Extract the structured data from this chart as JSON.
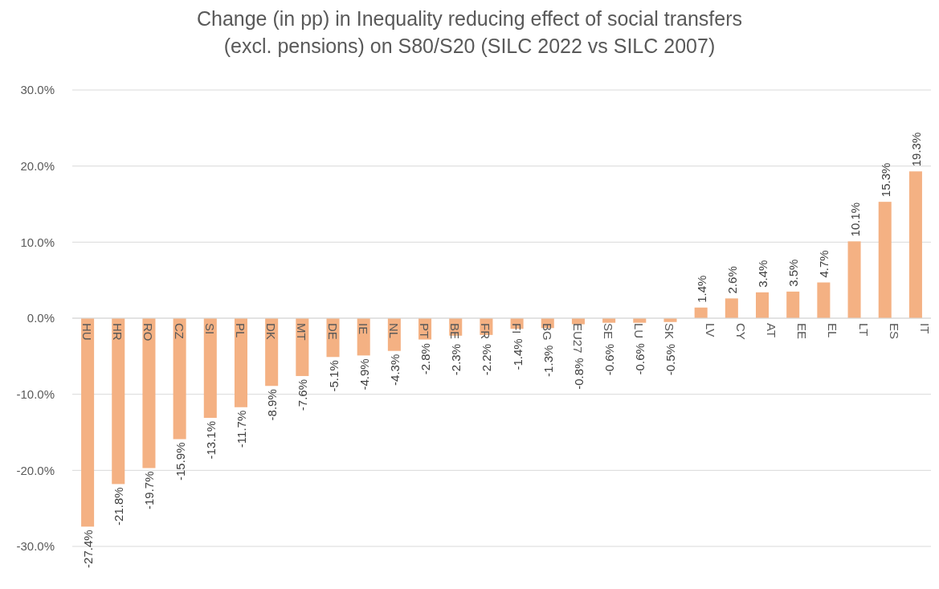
{
  "chart_data": {
    "type": "bar",
    "title": "Change (in pp) in Inequality reducing effect of social transfers (excl. pensions) on S80/S20 (SILC 2022 vs SILC 2007)",
    "categories": [
      "HU",
      "HR",
      "RO",
      "CZ",
      "SI",
      "PL",
      "DK",
      "MT",
      "DE",
      "IE",
      "NL",
      "PT",
      "BE",
      "FR",
      "FI",
      "BG",
      "EU27",
      "SE",
      "LU",
      "SK",
      "LV",
      "CY",
      "AT",
      "EE",
      "EL",
      "LT",
      "ES",
      "IT"
    ],
    "values": [
      -27.4,
      -21.8,
      -19.7,
      -15.9,
      -13.1,
      -11.7,
      -8.9,
      -7.6,
      -5.1,
      -4.9,
      -4.3,
      -2.8,
      -2.3,
      -2.2,
      -1.4,
      -1.3,
      -0.8,
      -0.6,
      -0.6,
      -0.5,
      1.4,
      2.6,
      3.4,
      3.5,
      4.7,
      10.1,
      15.3,
      19.3
    ],
    "value_labels": [
      "-27.4%",
      "-21.8%",
      "-19.7%",
      "-15.9%",
      "-13.1%",
      "-11.7%",
      "-8.9%",
      "-7.6%",
      "-5.1%",
      "-4.9%",
      "-4.3%",
      "-2.8%",
      "-2.3%",
      "-2.2%",
      "-1.4%",
      "-1.3%",
      "-0.8%",
      "-0.6%",
      "-0.6%",
      "-0.5%",
      "1.4%",
      "2.6%",
      "3.4%",
      "3.5%",
      "4.7%",
      "10.1%",
      "15.3%",
      "19.3%"
    ],
    "color": "#f4b183",
    "ylim": [
      -30,
      30
    ],
    "yticks": [
      {
        "value": -30,
        "label": "-30.0%"
      },
      {
        "value": -20,
        "label": "-20.0%"
      },
      {
        "value": -10,
        "label": "-10.0%"
      },
      {
        "value": 0,
        "label": "0.0%"
      },
      {
        "value": 10,
        "label": "10.0%"
      },
      {
        "value": 20,
        "label": "20.0%"
      },
      {
        "value": 30,
        "label": "30.0%"
      }
    ],
    "grid": "y"
  }
}
